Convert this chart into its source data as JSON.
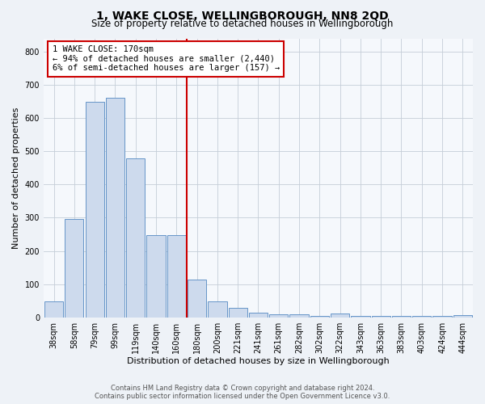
{
  "title": "1, WAKE CLOSE, WELLINGBOROUGH, NN8 2QD",
  "subtitle": "Size of property relative to detached houses in Wellingborough",
  "xlabel": "Distribution of detached houses by size in Wellingborough",
  "ylabel": "Number of detached properties",
  "bar_labels": [
    "38sqm",
    "58sqm",
    "79sqm",
    "99sqm",
    "119sqm",
    "140sqm",
    "160sqm",
    "180sqm",
    "200sqm",
    "221sqm",
    "241sqm",
    "261sqm",
    "282sqm",
    "302sqm",
    "322sqm",
    "343sqm",
    "363sqm",
    "383sqm",
    "403sqm",
    "424sqm",
    "444sqm"
  ],
  "bar_values": [
    47,
    295,
    648,
    662,
    478,
    248,
    248,
    113,
    48,
    28,
    15,
    10,
    10,
    5,
    12,
    5,
    5,
    3,
    3,
    5,
    7
  ],
  "bar_color": "#cddaed",
  "bar_edge_color": "#6695c8",
  "vline_x": 6.5,
  "annotation_text_line1": "1 WAKE CLOSE: 170sqm",
  "annotation_text_line2": "← 94% of detached houses are smaller (2,440)",
  "annotation_text_line3": "6% of semi-detached houses are larger (157) →",
  "annotation_box_facecolor": "#ffffff",
  "annotation_box_edgecolor": "#cc0000",
  "vline_color": "#cc0000",
  "ylim": [
    0,
    840
  ],
  "yticks": [
    0,
    100,
    200,
    300,
    400,
    500,
    600,
    700,
    800
  ],
  "footer1": "Contains HM Land Registry data © Crown copyright and database right 2024.",
  "footer2": "Contains public sector information licensed under the Open Government Licence v3.0.",
  "bg_color": "#eef2f7",
  "plot_bg_color": "#f5f8fc",
  "grid_color": "#c5cdd8",
  "title_fontsize": 10,
  "subtitle_fontsize": 8.5,
  "axis_label_fontsize": 8,
  "tick_fontsize": 7,
  "annot_fontsize": 7.5,
  "footer_fontsize": 6
}
